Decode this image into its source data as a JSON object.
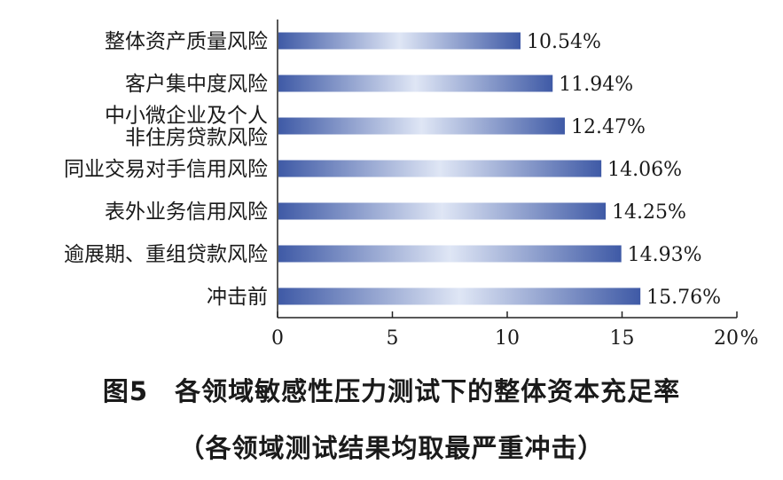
{
  "chart_data": {
    "type": "bar",
    "orientation": "horizontal",
    "categories": [
      [
        "整体资产质量风险"
      ],
      [
        "客户集中度风险"
      ],
      [
        "中小微企业及个人",
        "非住房贷款风险"
      ],
      [
        "同业交易对手信用风险"
      ],
      [
        "表外业务信用风险"
      ],
      [
        "逾展期、重组贷款风险"
      ],
      [
        "冲击前"
      ]
    ],
    "values": [
      10.54,
      11.94,
      12.47,
      14.06,
      14.25,
      14.93,
      15.76
    ],
    "value_labels": [
      "10.54%",
      "11.94%",
      "12.47%",
      "14.06%",
      "14.25%",
      "14.93%",
      "15.76%"
    ],
    "xticks": [
      "0",
      "5",
      "10",
      "15",
      "20"
    ],
    "xunit": "%",
    "xlim": [
      0,
      20
    ],
    "grid": false,
    "bar_color_dark": "#3f5aa6",
    "bar_color_light": "#dfe6f5"
  },
  "caption": {
    "title": "图5　各领域敏感性压力测试下的整体资本充足率",
    "subtitle": "（各领域测试结果均取最严重冲击）"
  }
}
